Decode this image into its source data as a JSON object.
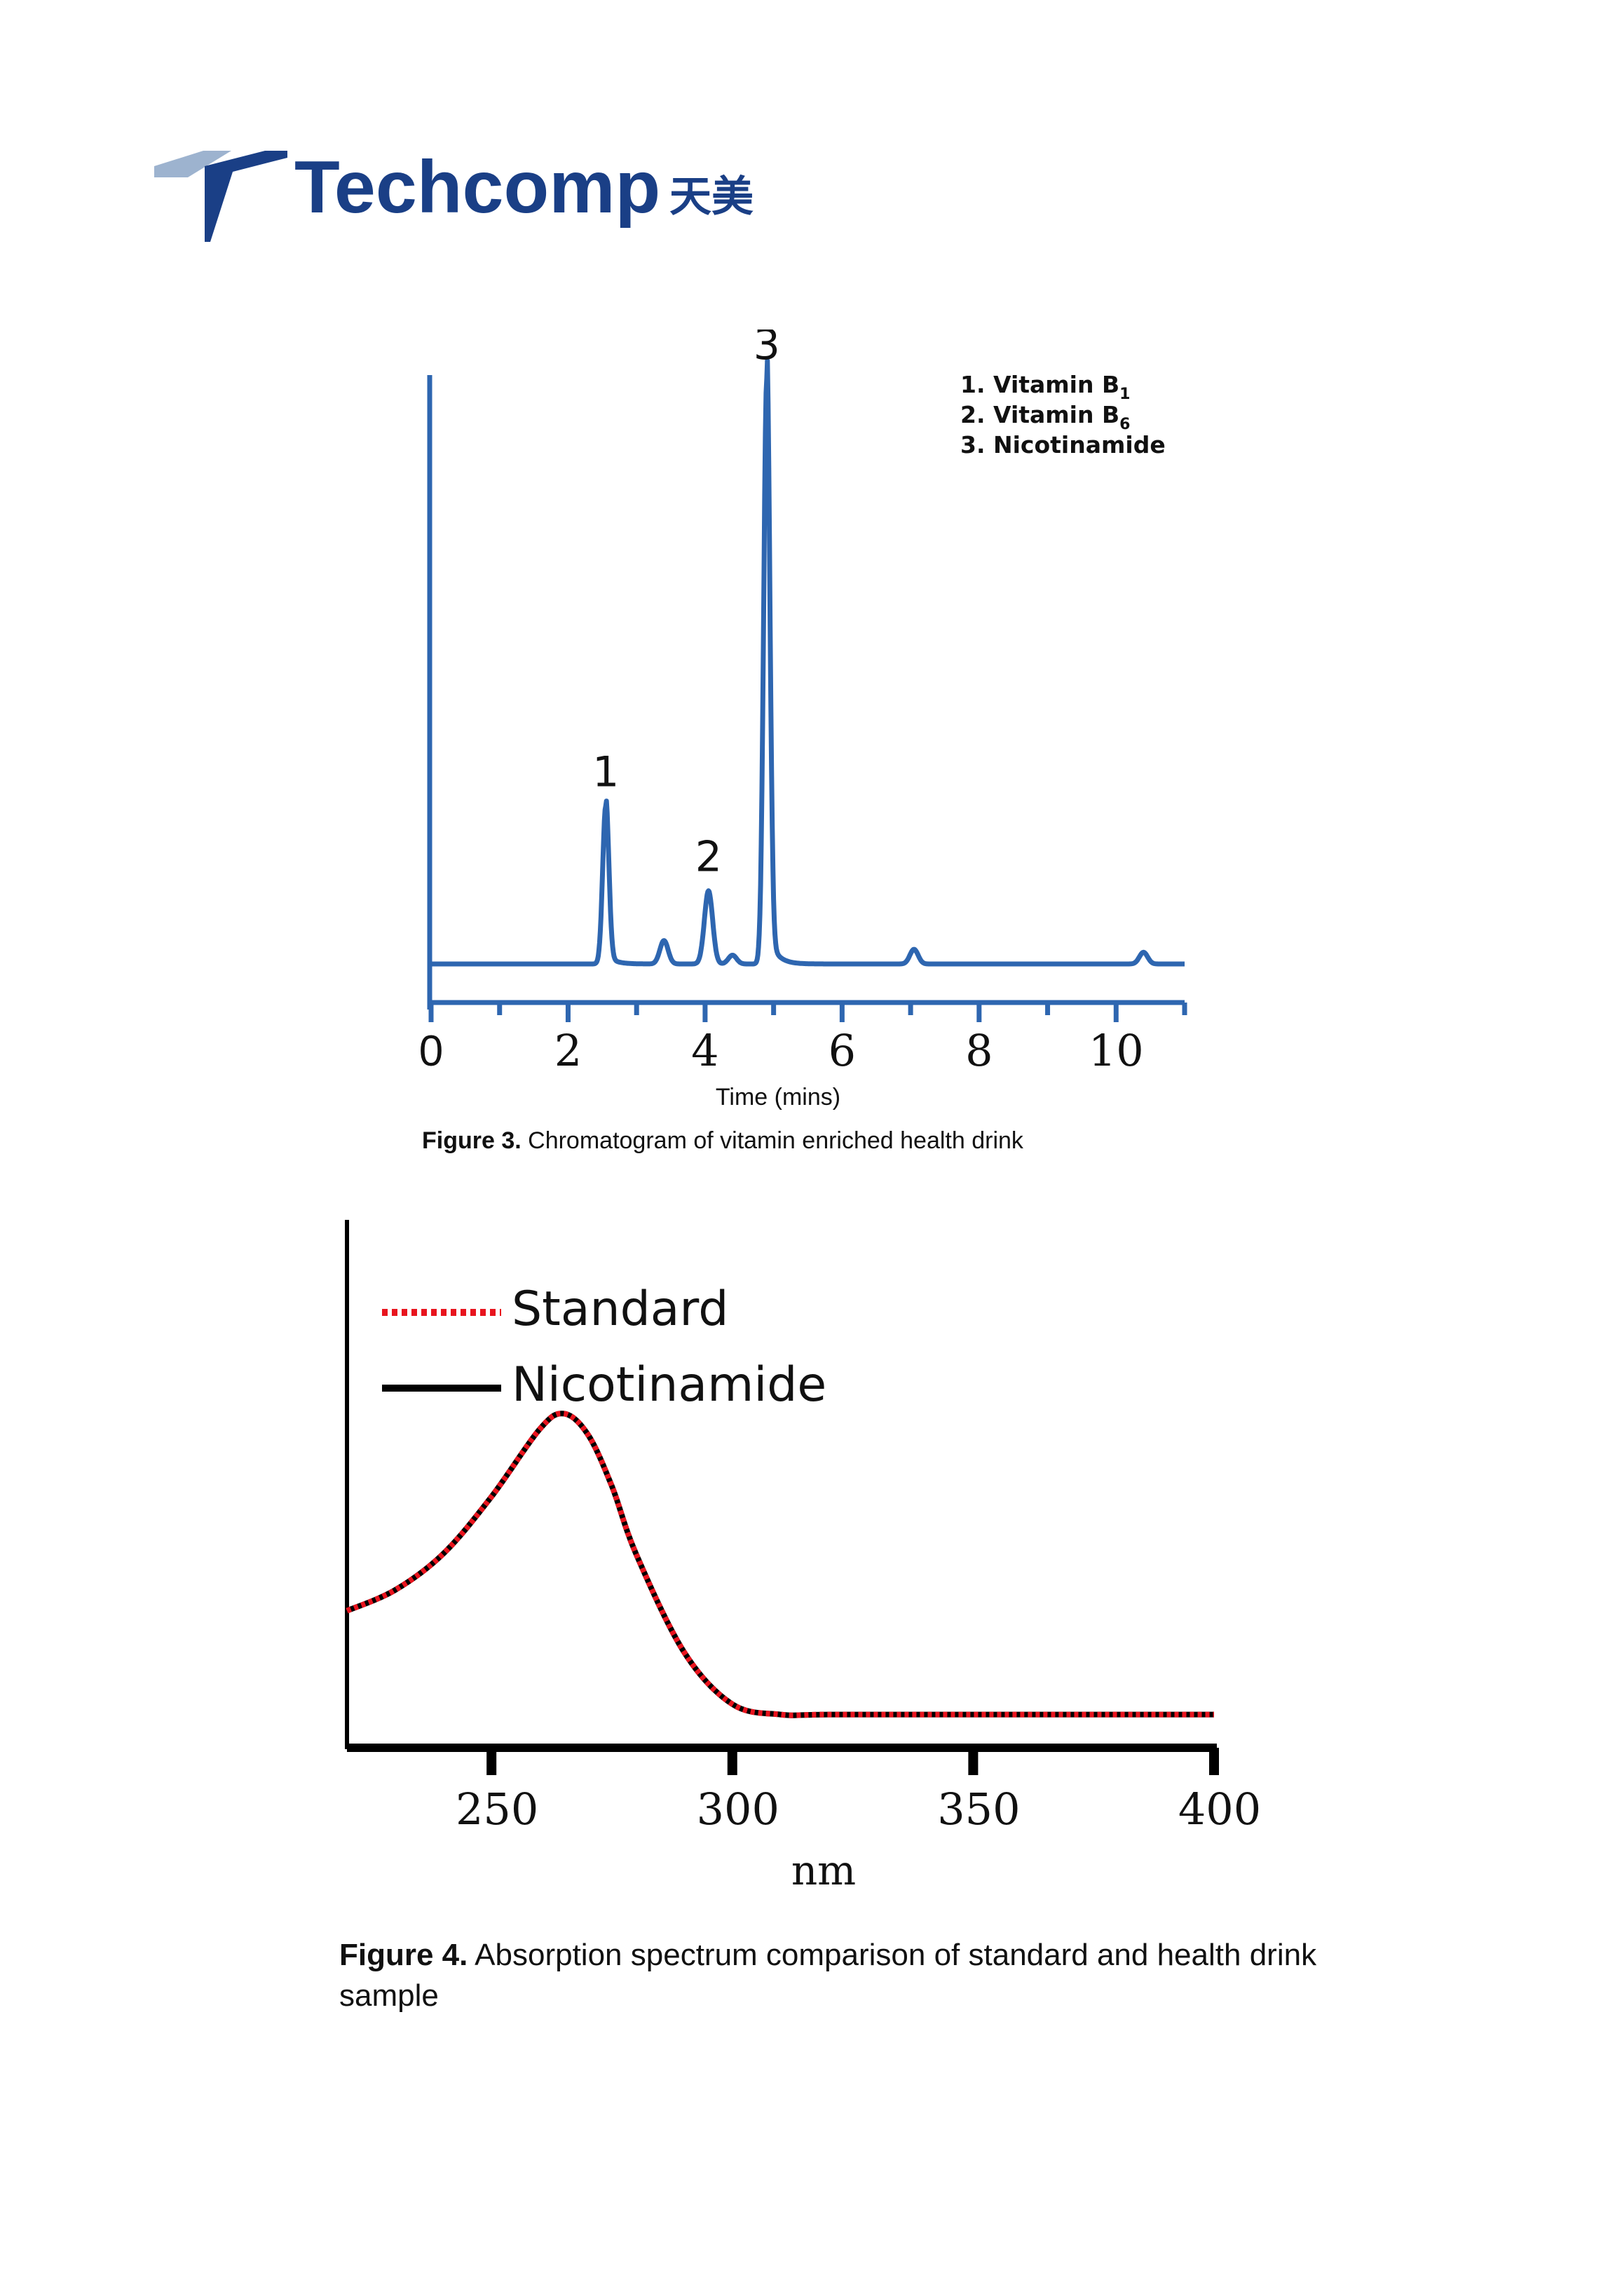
{
  "brand": {
    "name": "Techcomp",
    "name_cn": "天美",
    "color": "#1a3f86",
    "accent_color": "#9db3cf"
  },
  "chart_data": [
    {
      "type": "line",
      "xlabel": "Time (mins)",
      "xlim": [
        0,
        11
      ],
      "ylim": [
        0,
        100
      ],
      "x_ticks": [
        "0",
        "2",
        "4",
        "6",
        "8",
        "10"
      ],
      "color": "#2e66b0",
      "peaks": [
        {
          "label": "1",
          "x": 2.55,
          "y": 27
        },
        {
          "label": "2",
          "x": 4.05,
          "y": 12.5
        },
        {
          "label": "3",
          "x": 4.9,
          "y": 100
        }
      ],
      "minor_peaks": [
        {
          "x": 3.4,
          "y": 4
        },
        {
          "x": 4.4,
          "y": 1.5
        },
        {
          "x": 7.05,
          "y": 2.5
        },
        {
          "x": 10.4,
          "y": 2
        }
      ],
      "legend": [
        {
          "num": "1. ",
          "name": "Vitamin B",
          "sub": "1"
        },
        {
          "num": "2. ",
          "name": "Vitamin B",
          "sub": "6"
        },
        {
          "num": "3. ",
          "name": "Nicotinamide",
          "sub": ""
        }
      ]
    },
    {
      "type": "line",
      "xlabel": "nm",
      "xlim": [
        220,
        400
      ],
      "ylim": [
        0,
        100
      ],
      "x_ticks": [
        "250",
        "300",
        "350",
        "400"
      ],
      "legend_position": "top-left",
      "series": [
        {
          "name": "Standard",
          "color": "#e8141e",
          "style": "dotted",
          "x": [
            220,
            230,
            240,
            250,
            260,
            265,
            270,
            275,
            280,
            290,
            300,
            310,
            320,
            350,
            400
          ],
          "y": [
            26,
            30,
            37,
            48,
            61,
            64,
            60,
            50,
            37,
            18,
            8,
            6,
            6,
            6,
            6
          ]
        },
        {
          "name": "Nicotinamide",
          "color": "#000000",
          "style": "solid",
          "x": [
            220,
            230,
            240,
            250,
            260,
            265,
            270,
            275,
            280,
            290,
            300,
            310,
            320,
            350,
            400
          ],
          "y": [
            26,
            30,
            37,
            48,
            61,
            64,
            60,
            50,
            37,
            18,
            8,
            6,
            6,
            6,
            6
          ]
        }
      ]
    }
  ],
  "captions": {
    "fig3_label": "Figure 3.",
    "fig3_text": " Chromatogram of vitamin enriched health drink",
    "fig4_label": "Figure 4.",
    "fig4_text": " Absorption spectrum comparison of standard and health drink sample"
  }
}
